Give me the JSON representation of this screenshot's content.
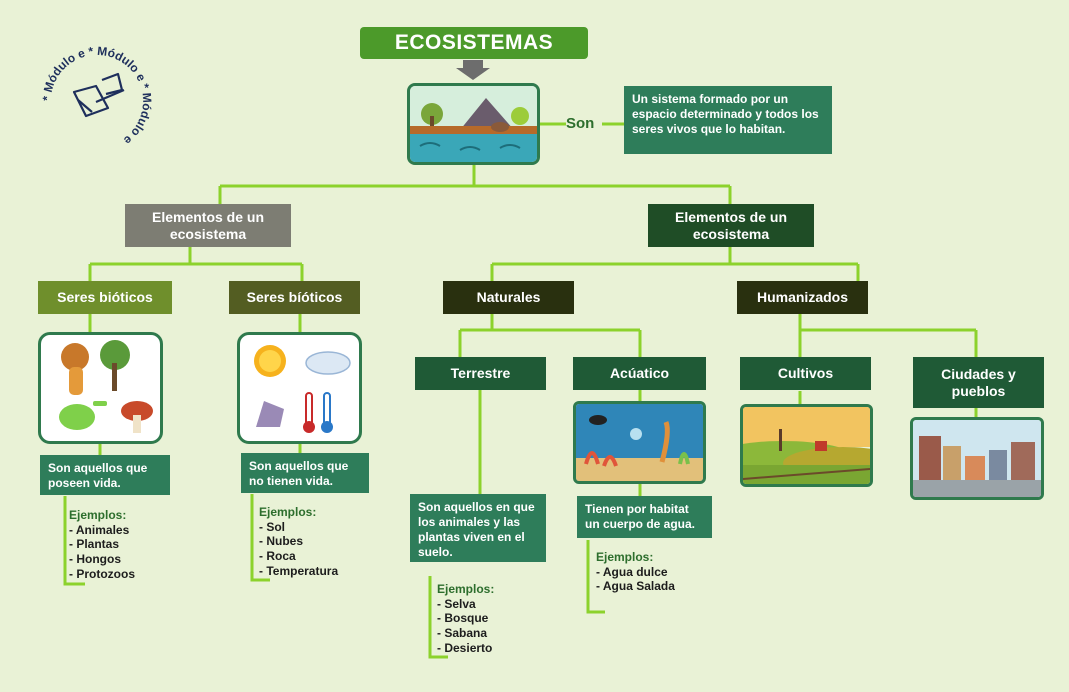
{
  "title": "ECOSISTEMAS",
  "son_label": "Son",
  "definition": "Un sistema formado por un espacio determinado y todos los seres vivos que lo habitan.",
  "logo": {
    "ring_text": "* Módulo e * Módulo e * Módulo e"
  },
  "left_branch": {
    "label": "Elementos de un ecosistema",
    "bioticos": {
      "label": "Seres bióticos",
      "description": "Son aquellos que poseen vida.",
      "examples_title": "Ejemplos:",
      "examples": [
        "Animales",
        "Plantas",
        "Hongos",
        "Protozoos"
      ]
    },
    "abioticos": {
      "label": "Seres bíóticos",
      "description": "Son aquellos que no tienen  vida.",
      "examples_title": "Ejemplos:",
      "examples": [
        "Sol",
        "Nubes",
        "Roca",
        "Temperatura"
      ]
    }
  },
  "right_branch": {
    "label": "Elementos de un ecosistema",
    "naturales": {
      "label": "Naturales",
      "terrestre": {
        "label": "Terrestre",
        "description": "Son aquellos en que los animales y las plantas viven en el suelo.",
        "examples_title": "Ejemplos:",
        "examples": [
          "Selva",
          "Bosque",
          "Sabana",
          "Desierto"
        ]
      },
      "acuatico": {
        "label": "Acúatico",
        "description": "Tienen por habitat un cuerpo de agua.",
        "examples_title": "Ejemplos:",
        "examples": [
          "Agua dulce",
          "Agua Salada"
        ]
      }
    },
    "humanizados": {
      "label": "Humanizados",
      "cultivos": {
        "label": "Cultivos"
      },
      "ciudades": {
        "label": "Ciudades y pueblos"
      }
    }
  },
  "colors": {
    "background": "#e9f2d6",
    "connector": "#8cd22c",
    "title_green": "#4c9a2a",
    "arrow": "#6d6d6d"
  }
}
